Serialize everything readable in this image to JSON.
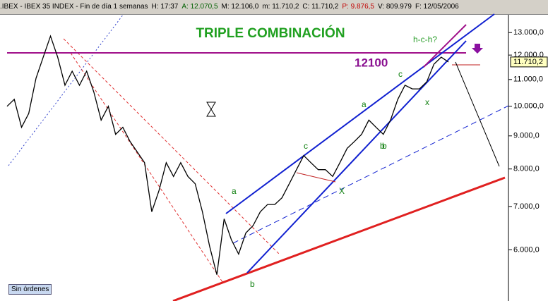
{
  "chart_data": {
    "type": "line",
    "log_scale": true,
    "header": [
      ".IBEX - IBEX 35 INDEX - Fin de día 1 semanas",
      "H: 17:37",
      "A: 12.070,5",
      "M: 12.106,0",
      "m: 11.710,2",
      "C: 11.710,2",
      "P: 9.876,5",
      "V: 809.979",
      "F: 12/05/2006"
    ],
    "title": "TRIPLE COMBINACIÓN",
    "annotations": [
      "12100",
      "h-c-h?",
      "a",
      "c",
      "b",
      "X",
      "a",
      "b",
      "c",
      "x",
      "b"
    ],
    "button": "Sin órdenes",
    "last_value_label": "11.710,2",
    "series": [
      {
        "color": "#000000",
        "values": [
          10000,
          10250,
          9280,
          9750,
          11050,
          11910,
          12840,
          11910,
          10780,
          11330,
          10780,
          11330,
          10510,
          9520,
          10000,
          9050,
          9280,
          8820,
          8500,
          8180,
          6870,
          7410,
          8180,
          7790,
          8180,
          7790,
          7590,
          6870,
          6070,
          5490,
          6700,
          6220,
          5910,
          6370,
          6540,
          6870,
          7050,
          7050,
          7220,
          7590,
          7980,
          8390,
          8180,
          7980,
          7980,
          7790,
          8180,
          8610,
          8820,
          9050,
          9520,
          9280,
          9050,
          9520,
          10250,
          10780,
          10640,
          10640,
          10910,
          11620,
          11910,
          11710
        ]
      }
    ],
    "ylim": [
      5000,
      13850
    ],
    "yticks": [
      {
        "value": 13000,
        "label": "13.000,0"
      },
      {
        "value": 12000,
        "label": "12.000,0"
      },
      {
        "value": 11000,
        "label": "11.000,0"
      },
      {
        "value": 10000,
        "label": "10.000,0"
      },
      {
        "value": 9000,
        "label": "9.000,0"
      },
      {
        "value": 8000,
        "label": "8.000,0"
      },
      {
        "value": 7000,
        "label": "7.000,0"
      },
      {
        "value": 6000,
        "label": "6.000,0"
      }
    ]
  }
}
